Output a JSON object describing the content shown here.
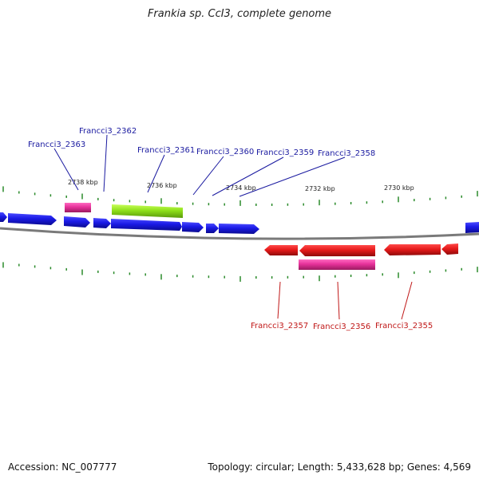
{
  "title": "Frankia sp. CcI3, complete genome",
  "footer": {
    "accession": "Accession: NC_007777",
    "summary": "Topology: circular; Length: 5,433,628 bp; Genes: 4,569"
  },
  "colors": {
    "forward_gene": "#1a1ae6",
    "reverse_gene": "#e61a1a",
    "rna": "#e6319a",
    "highlight": "#8fe01a",
    "backbone": "#7a7a7a",
    "tick": "#2a8a2a",
    "forward_label": "#1a1aa0",
    "reverse_label": "#c01818"
  },
  "scale_labels": [
    "2738 kbp",
    "2736 kbp",
    "2734 kbp",
    "2732 kbp",
    "2730 kbp"
  ],
  "forward_labels": [
    "Francci3_2363",
    "Francci3_2362",
    "Francci3_2361",
    "Francci3_2360",
    "Francci3_2359",
    "Francci3_2358"
  ],
  "reverse_labels": [
    "Francci3_2357",
    "Francci3_2356",
    "Francci3_2355"
  ]
}
